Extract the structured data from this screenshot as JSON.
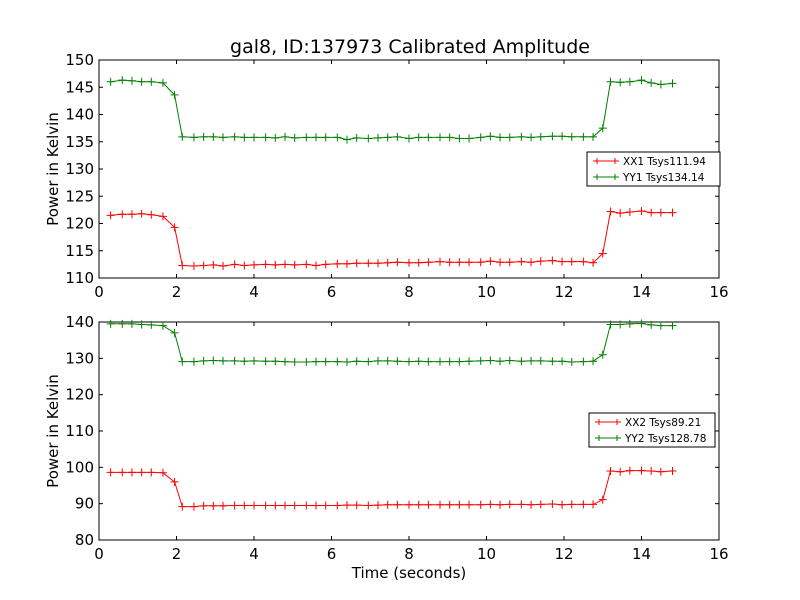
{
  "figure": {
    "title": "gal8, ID:137973 Calibrated Amplitude"
  },
  "chart_data": [
    {
      "type": "line",
      "title": "gal8, ID:137973 Calibrated Amplitude",
      "xlabel": "",
      "ylabel": "Power in Kelvin",
      "xlim": [
        0,
        16
      ],
      "ylim": [
        110,
        150
      ],
      "xticks": [
        "0",
        "2",
        "4",
        "6",
        "8",
        "10",
        "12",
        "14",
        "16"
      ],
      "yticks": [
        "110",
        "115",
        "120",
        "125",
        "130",
        "135",
        "140",
        "145",
        "150"
      ],
      "grid": false,
      "legend_position": "center-right",
      "series": [
        {
          "name": "XX1 Tsys111.94",
          "color": "#ff0000",
          "marker": "plus",
          "x": [
            0.3,
            0.6,
            0.85,
            1.1,
            1.35,
            1.65,
            1.95,
            2.15,
            2.45,
            2.7,
            2.95,
            3.2,
            3.5,
            3.75,
            4.0,
            4.3,
            4.55,
            4.8,
            5.05,
            5.35,
            5.6,
            5.85,
            6.15,
            6.4,
            6.65,
            6.95,
            7.2,
            7.45,
            7.7,
            8.0,
            8.25,
            8.5,
            8.8,
            9.05,
            9.3,
            9.55,
            9.85,
            10.1,
            10.35,
            10.6,
            10.9,
            11.15,
            11.4,
            11.7,
            11.95,
            12.2,
            12.5,
            12.75,
            13.0,
            13.2,
            13.45,
            13.7,
            14.0,
            14.25,
            14.5,
            14.8
          ],
          "y": [
            121.5,
            121.7,
            121.7,
            121.8,
            121.6,
            121.3,
            119.3,
            112.3,
            112.2,
            112.3,
            112.4,
            112.2,
            112.5,
            112.3,
            112.4,
            112.5,
            112.4,
            112.5,
            112.4,
            112.5,
            112.3,
            112.5,
            112.6,
            112.6,
            112.7,
            112.7,
            112.7,
            112.8,
            112.9,
            112.8,
            112.8,
            112.9,
            113.0,
            112.9,
            112.9,
            112.9,
            112.9,
            113.1,
            112.9,
            112.9,
            113.0,
            112.9,
            113.1,
            113.2,
            113.0,
            113.0,
            113.0,
            112.8,
            114.5,
            122.2,
            121.9,
            122.1,
            122.3,
            122.0,
            122.0,
            122.0
          ]
        },
        {
          "name": "YY1 Tsys134.14",
          "color": "#008000",
          "marker": "plus",
          "x": [
            0.3,
            0.6,
            0.85,
            1.1,
            1.35,
            1.65,
            1.95,
            2.15,
            2.45,
            2.7,
            2.95,
            3.2,
            3.5,
            3.75,
            4.0,
            4.3,
            4.55,
            4.8,
            5.05,
            5.35,
            5.6,
            5.85,
            6.15,
            6.4,
            6.65,
            6.95,
            7.2,
            7.45,
            7.7,
            8.0,
            8.25,
            8.5,
            8.8,
            9.05,
            9.3,
            9.55,
            9.85,
            10.1,
            10.35,
            10.6,
            10.9,
            11.15,
            11.4,
            11.7,
            11.95,
            12.2,
            12.5,
            12.75,
            13.0,
            13.2,
            13.45,
            13.7,
            14.0,
            14.25,
            14.5,
            14.8
          ],
          "y": [
            146.0,
            146.3,
            146.2,
            146.0,
            146.0,
            145.8,
            143.6,
            135.9,
            135.8,
            135.9,
            135.9,
            135.8,
            135.9,
            135.8,
            135.8,
            135.8,
            135.7,
            135.9,
            135.7,
            135.8,
            135.8,
            135.8,
            135.8,
            135.4,
            135.7,
            135.6,
            135.7,
            135.8,
            135.9,
            135.6,
            135.8,
            135.8,
            135.8,
            135.8,
            135.6,
            135.6,
            135.8,
            136.0,
            135.8,
            135.8,
            135.9,
            135.8,
            135.9,
            136.0,
            136.0,
            135.9,
            135.9,
            135.9,
            137.5,
            146.0,
            145.9,
            146.0,
            146.3,
            145.8,
            145.5,
            145.7
          ]
        }
      ]
    },
    {
      "type": "line",
      "title": "",
      "xlabel": "Time (seconds)",
      "ylabel": "Power in Kelvin",
      "xlim": [
        0,
        16
      ],
      "ylim": [
        80,
        140
      ],
      "xticks": [
        "0",
        "2",
        "4",
        "6",
        "8",
        "10",
        "12",
        "14",
        "16"
      ],
      "yticks": [
        "80",
        "90",
        "100",
        "110",
        "120",
        "130",
        "140"
      ],
      "grid": false,
      "legend_position": "center-right",
      "series": [
        {
          "name": "XX2 Tsys89.21",
          "color": "#ff0000",
          "marker": "plus",
          "x": [
            0.3,
            0.6,
            0.85,
            1.1,
            1.35,
            1.65,
            1.95,
            2.15,
            2.45,
            2.7,
            2.95,
            3.2,
            3.5,
            3.75,
            4.0,
            4.3,
            4.55,
            4.8,
            5.05,
            5.35,
            5.6,
            5.85,
            6.15,
            6.4,
            6.65,
            6.95,
            7.2,
            7.45,
            7.7,
            8.0,
            8.25,
            8.5,
            8.8,
            9.05,
            9.3,
            9.55,
            9.85,
            10.1,
            10.35,
            10.6,
            10.9,
            11.15,
            11.4,
            11.7,
            11.95,
            12.2,
            12.5,
            12.75,
            13.0,
            13.2,
            13.45,
            13.7,
            14.0,
            14.25,
            14.5,
            14.8
          ],
          "y": [
            98.6,
            98.6,
            98.6,
            98.6,
            98.6,
            98.5,
            96.0,
            89.2,
            89.2,
            89.4,
            89.4,
            89.4,
            89.5,
            89.5,
            89.5,
            89.5,
            89.5,
            89.5,
            89.5,
            89.5,
            89.5,
            89.5,
            89.5,
            89.6,
            89.6,
            89.5,
            89.6,
            89.7,
            89.7,
            89.7,
            89.7,
            89.7,
            89.7,
            89.7,
            89.7,
            89.7,
            89.7,
            89.8,
            89.7,
            89.8,
            89.8,
            89.7,
            89.8,
            89.9,
            89.7,
            89.8,
            89.8,
            89.8,
            91.1,
            99.0,
            98.8,
            99.1,
            99.1,
            99.0,
            98.8,
            99.0
          ]
        },
        {
          "name": "YY2 Tsys128.78",
          "color": "#008000",
          "marker": "plus",
          "x": [
            0.3,
            0.6,
            0.85,
            1.1,
            1.35,
            1.65,
            1.95,
            2.15,
            2.45,
            2.7,
            2.95,
            3.2,
            3.5,
            3.75,
            4.0,
            4.3,
            4.55,
            4.8,
            5.05,
            5.35,
            5.6,
            5.85,
            6.15,
            6.4,
            6.65,
            6.95,
            7.2,
            7.45,
            7.7,
            8.0,
            8.25,
            8.5,
            8.8,
            9.05,
            9.3,
            9.55,
            9.85,
            10.1,
            10.35,
            10.6,
            10.9,
            11.15,
            11.4,
            11.7,
            11.95,
            12.2,
            12.5,
            12.75,
            13.0,
            13.2,
            13.45,
            13.7,
            14.0,
            14.25,
            14.5,
            14.8
          ],
          "y": [
            139.5,
            139.5,
            139.5,
            139.3,
            139.2,
            139.0,
            137.0,
            129.1,
            129.1,
            129.3,
            129.4,
            129.3,
            129.3,
            129.2,
            129.3,
            129.2,
            129.2,
            129.1,
            129.0,
            129.0,
            129.1,
            129.1,
            129.1,
            129.0,
            129.2,
            129.1,
            129.3,
            129.3,
            129.2,
            129.1,
            129.2,
            129.1,
            129.1,
            129.1,
            129.1,
            129.2,
            129.3,
            129.4,
            129.2,
            129.4,
            129.2,
            129.3,
            129.3,
            129.2,
            129.2,
            129.0,
            129.1,
            129.2,
            131.0,
            139.3,
            139.3,
            139.5,
            139.6,
            139.2,
            139.0,
            139.0
          ]
        }
      ]
    }
  ]
}
